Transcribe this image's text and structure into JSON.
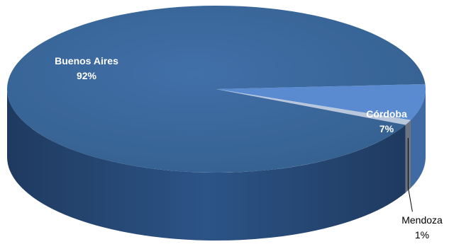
{
  "chart_data": {
    "type": "pie",
    "style": "3d",
    "title": "",
    "slices": [
      {
        "name": "Buenos Aires",
        "value": 92,
        "label": "92%",
        "color": "#3c6aa3",
        "side_color": "#2b4e7c"
      },
      {
        "name": "Córdoba",
        "value": 7,
        "label": "7%",
        "color": "#5a8bd0",
        "side_color": "#3f6aa3"
      },
      {
        "name": "Mendoza",
        "value": 1,
        "label": "1%",
        "color": "#b9c7dd",
        "side_color": "#6b7380"
      }
    ]
  }
}
